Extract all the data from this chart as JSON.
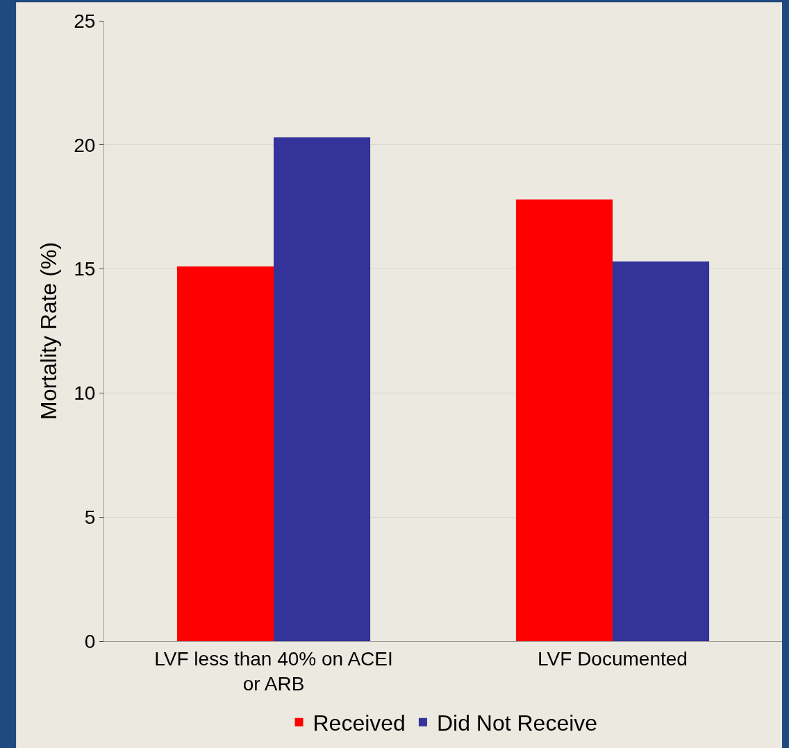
{
  "chart_data": {
    "type": "bar",
    "ylabel": "Mortality Rate (%)",
    "categories": [
      "LVF less than 40% on ACEI or ARB",
      "LVF Documented"
    ],
    "series": [
      {
        "name": "Received",
        "color": "#ff0000",
        "values": [
          15.1,
          17.8
        ]
      },
      {
        "name": "Did Not Receive",
        "color": "#333399",
        "values": [
          20.3,
          15.3
        ]
      }
    ],
    "ylim": [
      0,
      25
    ],
    "yticks": [
      0,
      5,
      10,
      15,
      20,
      25
    ],
    "grid": "y",
    "legend": "bottom"
  }
}
